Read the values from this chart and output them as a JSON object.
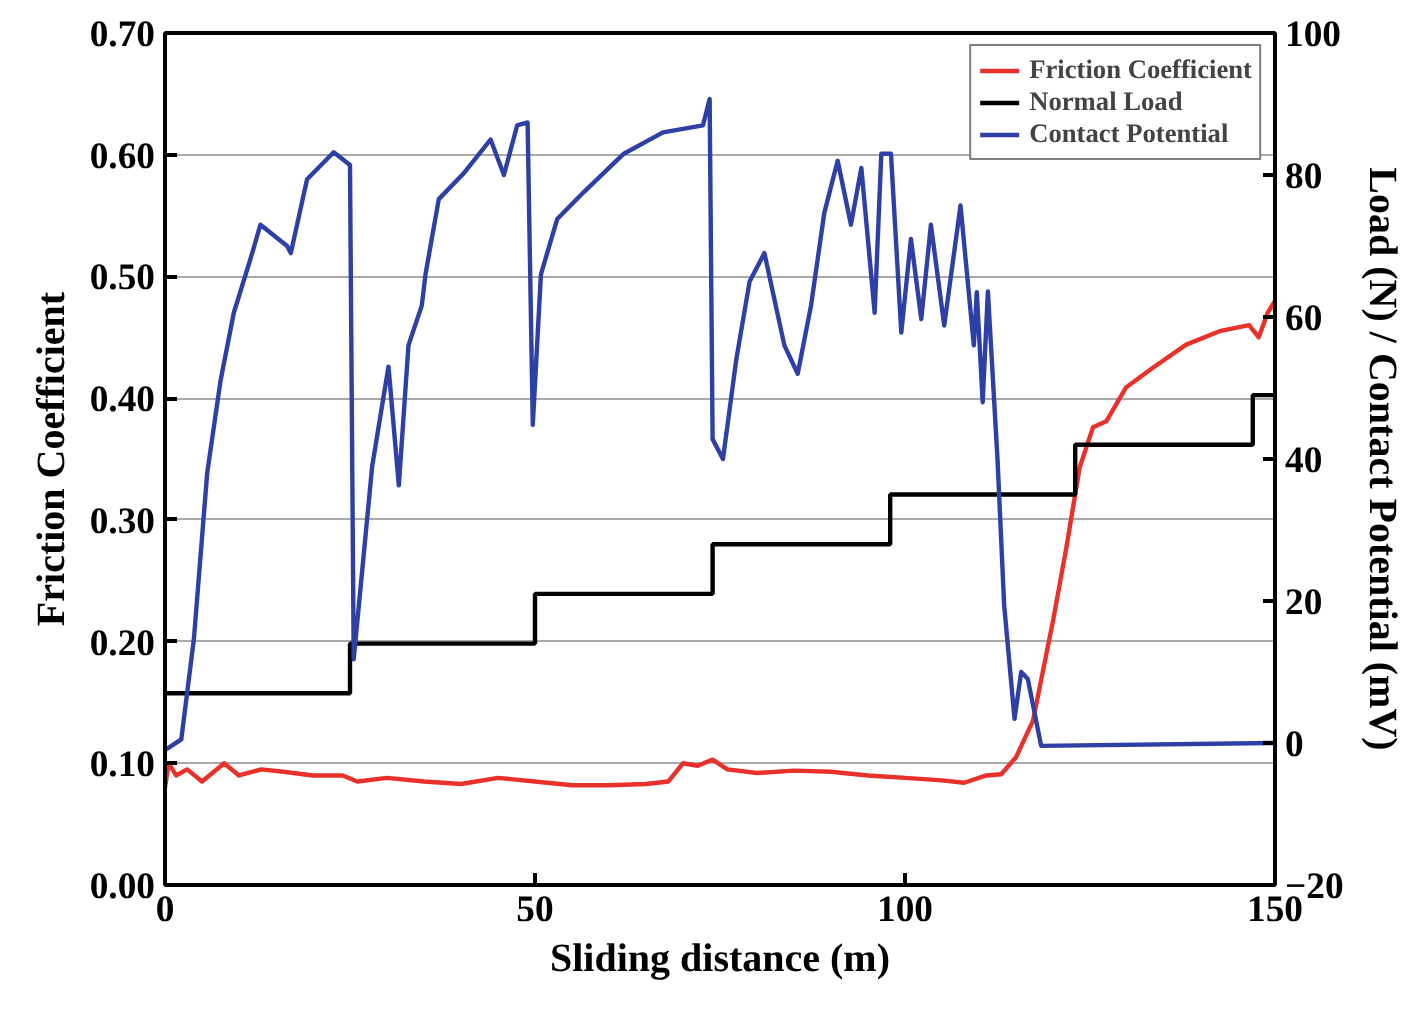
{
  "chart_data": {
    "type": "line",
    "xlabel": "Sliding distance (m)",
    "ylabel": "Friction Coefficient",
    "y2label": "Load (N) / Contact Potential (mV)",
    "xlim": [
      0,
      150
    ],
    "xticks": [
      0,
      50,
      100,
      150
    ],
    "ylim": [
      0,
      0.7
    ],
    "yticks": [
      {
        "value": 0,
        "label": "0.00"
      },
      {
        "value": 0.1,
        "label": "0.10"
      },
      {
        "value": 0.2,
        "label": "0.20"
      },
      {
        "value": 0.3,
        "label": "0.30"
      },
      {
        "value": 0.4,
        "label": "0.40"
      },
      {
        "value": 0.5,
        "label": "0.50"
      },
      {
        "value": 0.6,
        "label": "0.60"
      },
      {
        "value": 0.7,
        "label": "0.70"
      }
    ],
    "y2lim": [
      -20,
      100
    ],
    "y2ticks": [
      -20,
      0,
      20,
      40,
      60,
      80,
      100
    ],
    "grid": "y",
    "legend": "top right",
    "line_style": "solid",
    "series": [
      {
        "name": "Friction Coefficient",
        "color": "#e8312a",
        "x": [
          0,
          0.5,
          1.5,
          3,
          5,
          8,
          10,
          13,
          16,
          20,
          24,
          26,
          30,
          35,
          40,
          45,
          50,
          55,
          60,
          65,
          68,
          70,
          72,
          74,
          76,
          80,
          85,
          90,
          95,
          100,
          105,
          108,
          111,
          113,
          115,
          117.3,
          120,
          121.8,
          123.6,
          125.4,
          127.2,
          129.9,
          133.5,
          138,
          142.5,
          146.5,
          147.8,
          149,
          150
        ],
        "values": [
          0.08,
          0.1,
          0.09,
          0.095,
          0.085,
          0.1,
          0.09,
          0.095,
          0.093,
          0.09,
          0.09,
          0.085,
          0.088,
          0.085,
          0.083,
          0.088,
          0.085,
          0.082,
          0.082,
          0.083,
          0.085,
          0.1,
          0.098,
          0.103,
          0.095,
          0.092,
          0.094,
          0.093,
          0.09,
          0.088,
          0.086,
          0.084,
          0.09,
          0.091,
          0.105,
          0.135,
          0.217,
          0.277,
          0.343,
          0.376,
          0.381,
          0.409,
          0.425,
          0.444,
          0.455,
          0.46,
          0.45,
          0.47,
          0.48
        ]
      },
      {
        "name": "Normal Load",
        "color": "#000000",
        "type": "step",
        "axis": "y2",
        "x": [
          0,
          25,
          50,
          74,
          98,
          123,
          147,
          150
        ],
        "values": [
          7,
          14,
          21,
          28,
          35,
          42,
          49,
          49
        ]
      },
      {
        "name": "Contact Potential",
        "color": "#2e3fa6",
        "axis": "y2",
        "x": [
          0,
          2.2,
          3.9,
          5.7,
          7.5,
          9.3,
          11.5,
          12.9,
          16.5,
          17,
          19.2,
          22.8,
          25,
          25.5,
          28,
          30.2,
          31.6,
          32.9,
          34.7,
          35.2,
          37,
          40.5,
          44,
          45.8,
          47.6,
          49,
          49.7,
          50.8,
          53,
          56.6,
          62,
          67.3,
          72.7,
          73.6,
          74,
          75.4,
          77.2,
          79,
          81,
          83.7,
          85.5,
          87.3,
          89.1,
          90.9,
          92.7,
          94.1,
          95.9,
          96.8,
          98.1,
          99.5,
          100.8,
          102.2,
          103.5,
          105.3,
          107.5,
          109.3,
          109.7,
          110.5,
          111.2,
          112.5,
          113.4,
          114.8,
          115.7,
          116.6,
          118.4,
          150
        ],
        "values": [
          -1,
          0.5,
          14.6,
          38,
          51,
          60.6,
          68,
          73,
          70,
          69,
          79.4,
          83.2,
          81.4,
          11.8,
          39,
          53,
          36.3,
          56,
          61.6,
          66,
          76.6,
          80.4,
          85,
          80,
          87,
          87.4,
          44.8,
          66,
          73.8,
          77.6,
          83,
          86,
          87,
          90.7,
          42.8,
          40,
          54,
          65,
          69,
          56,
          52,
          61.6,
          74.7,
          82,
          73,
          81,
          60.6,
          83,
          83,
          57.8,
          71,
          59.7,
          73,
          58.8,
          75.7,
          56,
          63.5,
          48,
          63.6,
          40,
          19.4,
          3.4,
          10,
          9,
          -0.4,
          0
        ]
      }
    ]
  }
}
